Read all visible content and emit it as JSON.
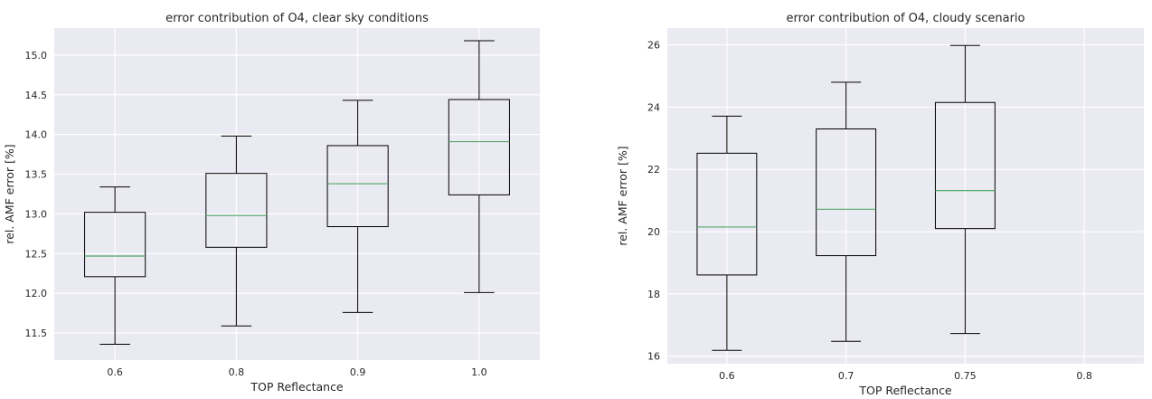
{
  "chart_data": [
    {
      "type": "box",
      "title": "error contribution of O4, clear sky conditions",
      "xlabel": "TOP Reflectance",
      "ylabel": "rel. AMF error [%]",
      "categories": [
        "0.6",
        "0.8",
        "0.9",
        "1.0"
      ],
      "ylim": [
        11.16,
        15.34
      ],
      "yticks": [
        "11.5",
        "12.0",
        "12.5",
        "13.0",
        "13.5",
        "14.0",
        "14.5",
        "15.0"
      ],
      "grid": true,
      "boxes": [
        {
          "whislo": 11.36,
          "q1": 12.21,
          "med": 12.47,
          "q3": 13.02,
          "whishi": 13.34
        },
        {
          "whislo": 11.59,
          "q1": 12.58,
          "med": 12.98,
          "q3": 13.51,
          "whishi": 13.98
        },
        {
          "whislo": 11.76,
          "q1": 12.84,
          "med": 13.38,
          "q3": 13.86,
          "whishi": 14.43
        },
        {
          "whislo": 12.01,
          "q1": 13.24,
          "med": 13.91,
          "q3": 14.44,
          "whishi": 15.18
        }
      ]
    },
    {
      "type": "box",
      "title": "error contribution of O4, cloudy scenario",
      "xlabel": "TOP Reflectance",
      "ylabel": "rel. AMF error [%]",
      "categories": [
        "0.6",
        "0.7",
        "0.75",
        "0.8"
      ],
      "ylim": [
        15.76,
        26.54
      ],
      "yticks": [
        "16",
        "18",
        "20",
        "22",
        "24",
        "26"
      ],
      "grid": true,
      "boxes": [
        {
          "whislo": 16.19,
          "q1": 18.61,
          "med": 20.15,
          "q3": 22.52,
          "whishi": 23.71
        },
        {
          "whislo": 16.48,
          "q1": 19.23,
          "med": 20.72,
          "q3": 23.3,
          "whishi": 24.8
        },
        {
          "whislo": 16.73,
          "q1": 20.1,
          "med": 21.32,
          "q3": 24.15,
          "whishi": 25.98
        },
        null
      ]
    }
  ],
  "colors": {
    "axes_bg": "#eaeaf2",
    "grid": "#ffffff",
    "box_edge": "#000000",
    "median": "#55a868",
    "text": "#262626"
  }
}
